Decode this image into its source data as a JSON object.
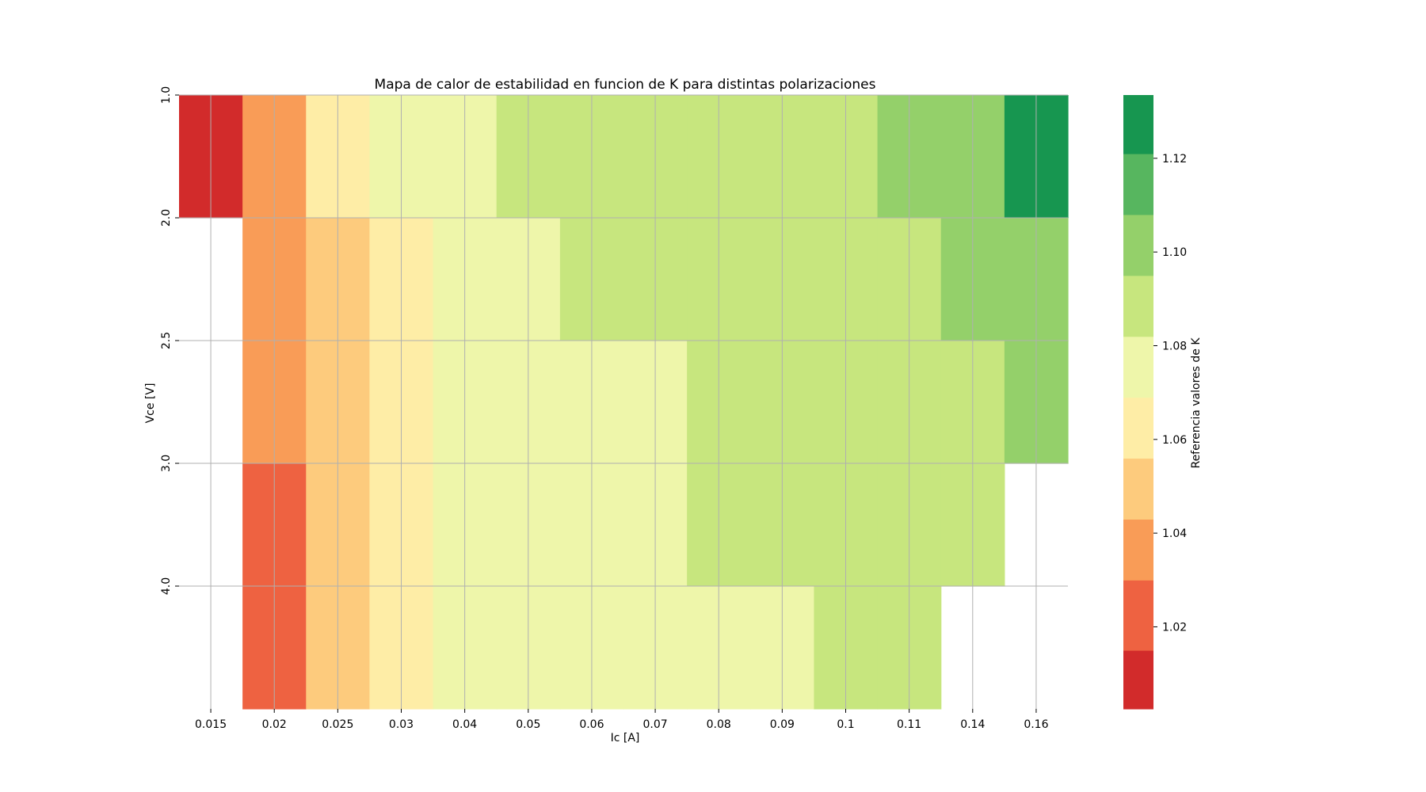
{
  "chart_data": {
    "type": "heatmap",
    "title": "Mapa de calor de estabilidad en funcion de K para distintas polarizaciones",
    "xlabel": "Ic [A]",
    "ylabel": "Vce [V]",
    "x_categories": [
      "0.015",
      "0.02",
      "0.025",
      "0.03",
      "0.04",
      "0.05",
      "0.06",
      "0.07",
      "0.08",
      "0.09",
      "0.1",
      "0.11",
      "0.14",
      "0.16"
    ],
    "y_categories": [
      "1.0",
      "2.0",
      "2.5",
      "3.0",
      "4.0"
    ],
    "row_tick_rows": [
      0.5,
      1.5,
      2.5,
      3.5,
      4.5
    ],
    "n_rows": 5,
    "values": [
      [
        1.005,
        1.04,
        1.065,
        1.075,
        1.075,
        1.085,
        1.085,
        1.085,
        1.085,
        1.085,
        1.085,
        1.095,
        1.105,
        1.125
      ],
      [
        null,
        1.04,
        1.05,
        1.065,
        1.075,
        1.075,
        1.085,
        1.085,
        1.085,
        1.085,
        1.085,
        1.085,
        1.095,
        1.095
      ],
      [
        null,
        1.04,
        1.05,
        1.065,
        1.075,
        1.075,
        1.075,
        1.075,
        1.085,
        1.085,
        1.085,
        1.085,
        1.085,
        1.095
      ],
      [
        null,
        1.025,
        1.05,
        1.065,
        1.075,
        1.075,
        1.075,
        1.075,
        1.085,
        1.085,
        1.085,
        1.085,
        1.085,
        null
      ],
      [
        null,
        1.025,
        1.05,
        1.065,
        1.075,
        1.075,
        1.075,
        1.075,
        1.075,
        1.075,
        1.085,
        1.085,
        null,
        null
      ]
    ],
    "row_spans": [
      1,
      1,
      1,
      1,
      1
    ],
    "colorbar": {
      "label": "Referencia valores de K",
      "vmin": 1.0025,
      "vmax": 1.1335,
      "ticks": [
        1.02,
        1.04,
        1.06,
        1.08,
        1.1,
        1.12
      ],
      "tick_labels": [
        "1.02",
        "1.04",
        "1.06",
        "1.08",
        "1.10",
        "1.12"
      ],
      "bins": [
        {
          "min": 1.0025,
          "max": 1.015,
          "color": "#d22b2b"
        },
        {
          "min": 1.015,
          "max": 1.03,
          "color": "#ee6241"
        },
        {
          "min": 1.03,
          "max": 1.043,
          "color": "#f99c57"
        },
        {
          "min": 1.043,
          "max": 1.056,
          "color": "#fdcb7d"
        },
        {
          "min": 1.056,
          "max": 1.069,
          "color": "#feeda6"
        },
        {
          "min": 1.069,
          "max": 1.082,
          "color": "#eef6aa"
        },
        {
          "min": 1.082,
          "max": 1.095,
          "color": "#c7e67e"
        },
        {
          "min": 1.095,
          "max": 1.108,
          "color": "#94d06a"
        },
        {
          "min": 1.108,
          "max": 1.121,
          "color": "#57b65f"
        },
        {
          "min": 1.121,
          "max": 1.1335,
          "color": "#179650"
        }
      ]
    },
    "grid": true
  }
}
